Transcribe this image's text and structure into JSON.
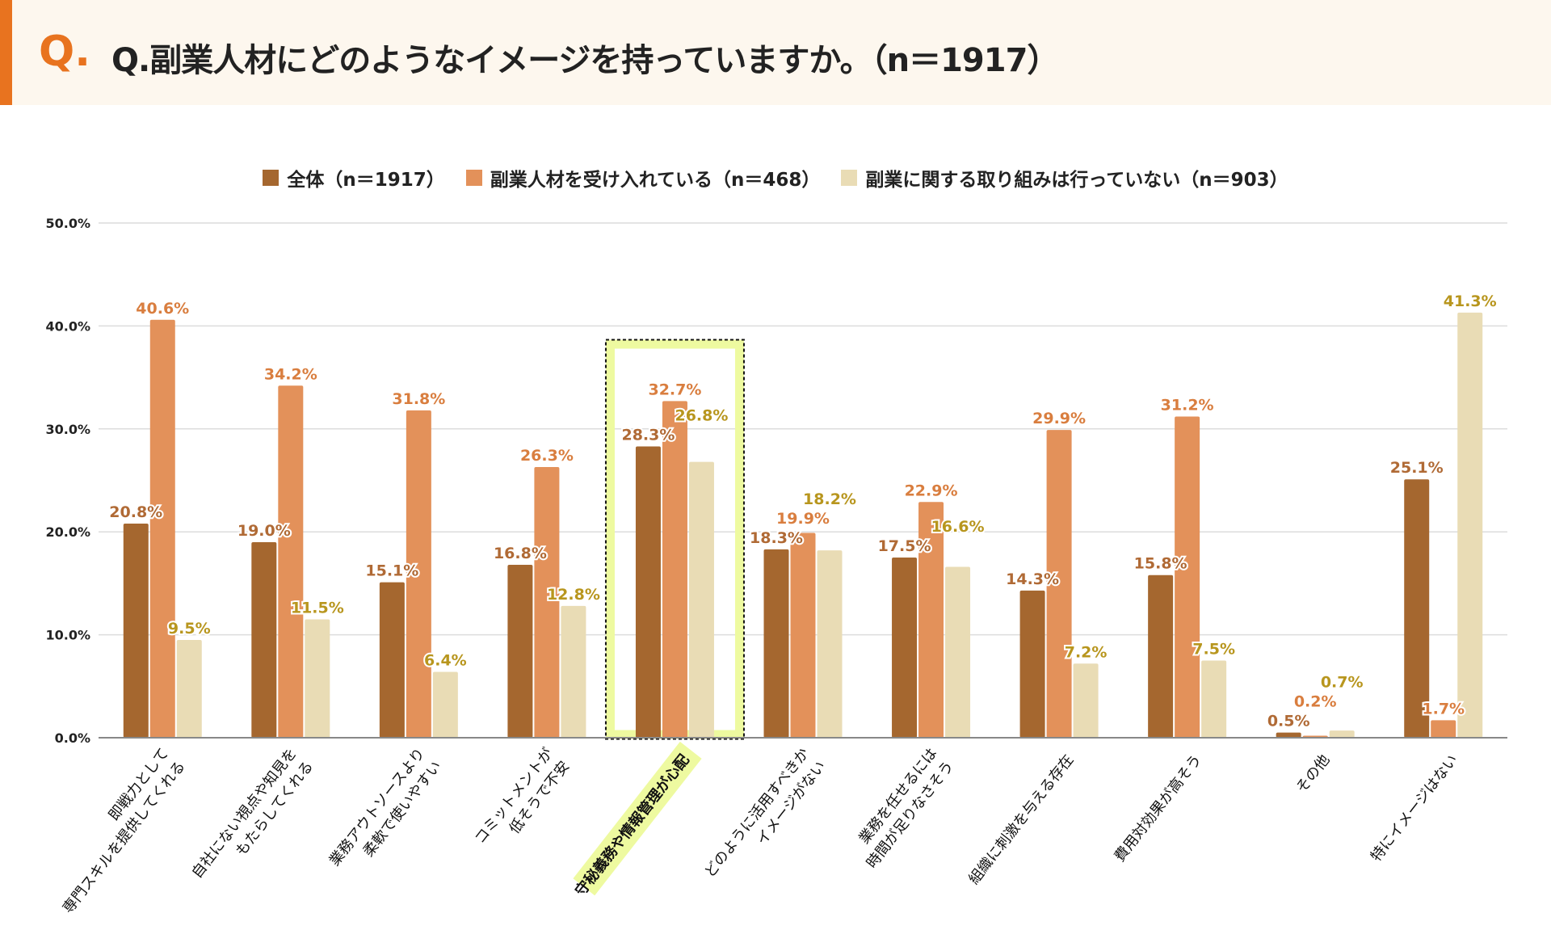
{
  "header": {
    "q_mark": "Q.",
    "title": "Q.副業人材にどのようなイメージを持っていますか。（n＝1917）"
  },
  "colors": {
    "accent": "#e8731f",
    "series": [
      "#a5672f",
      "#e3915a",
      "#e9dcb5"
    ],
    "label_colors": [
      "#b06a35",
      "#d97e3f",
      "#b8961e"
    ],
    "highlight": "#eefaa0"
  },
  "chart_data": {
    "type": "bar",
    "title": "",
    "xlabel": "",
    "ylabel": "",
    "ylim": [
      0,
      50
    ],
    "yticks": [
      "0.0%",
      "10.0%",
      "20.0%",
      "30.0%",
      "40.0%",
      "50.0%"
    ],
    "grid": true,
    "legend_position": "top",
    "categories": [
      [
        "即戦力として",
        "専門スキルを提供してくれる"
      ],
      [
        "自社にない視点や知見を",
        "もたらしてくれる"
      ],
      [
        "業務アウトソースより",
        "柔軟で使いやすい"
      ],
      [
        "コミットメントが",
        "低そうで不安"
      ],
      [
        "守秘義務や情報管理が心配"
      ],
      [
        "どのように活用すべきか",
        "イメージがない"
      ],
      [
        "業務を任せるには",
        "時間が足りなさそう"
      ],
      [
        "組織に刺激を与える存在"
      ],
      [
        "費用対効果が高そう"
      ],
      [
        "その他"
      ],
      [
        "特にイメージはない"
      ]
    ],
    "highlighted_category_index": 4,
    "series": [
      {
        "name": "全体（n＝1917）",
        "values": [
          20.8,
          19.0,
          15.1,
          16.8,
          28.3,
          18.3,
          17.5,
          14.3,
          15.8,
          0.5,
          25.1
        ]
      },
      {
        "name": "副業人材を受け入れている（n＝468）",
        "values": [
          40.6,
          34.2,
          31.8,
          26.3,
          32.7,
          19.9,
          22.9,
          29.9,
          31.2,
          0.2,
          1.7
        ]
      },
      {
        "name": "副業に関する取り組みは行っていない（n＝903）",
        "values": [
          9.5,
          11.5,
          6.4,
          12.8,
          26.8,
          18.2,
          16.6,
          7.2,
          7.5,
          0.7,
          41.3
        ]
      }
    ]
  }
}
